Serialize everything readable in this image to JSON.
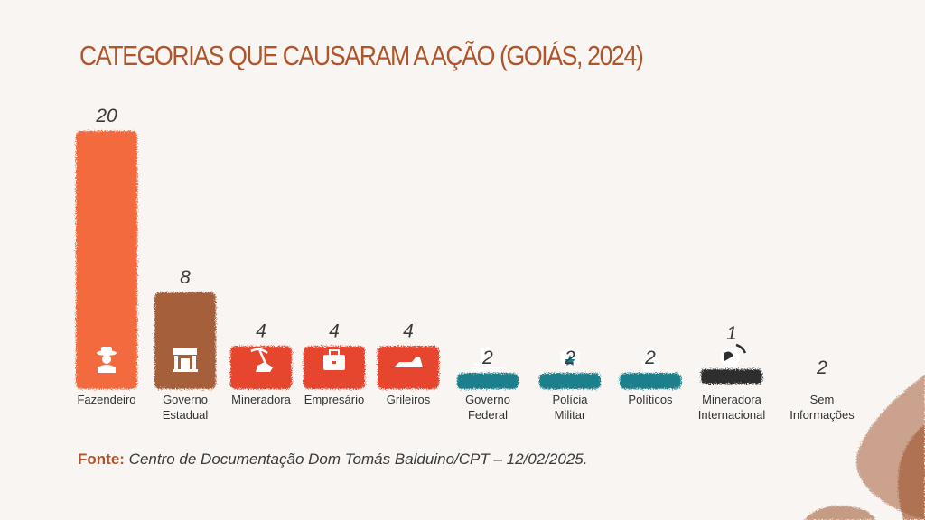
{
  "title": "CATEGORIAS QUE CAUSARAM A AÇÃO (GOIÁS, 2024)",
  "source": {
    "label": "Fonte:",
    "text": "Centro de Documentação Dom Tomás Balduino/CPT – 12/02/2025."
  },
  "colors": {
    "title": "#b0552a",
    "source_label": "#b0552a",
    "fazendeiro": "#f26a3c",
    "governo_estadual": "#a5603a",
    "red_group": "#e6452f",
    "teal_group": "#1c7f8c",
    "dark_group": "#2f2f2f",
    "deco": "#a5603a"
  },
  "chart_data": {
    "type": "bar",
    "title": "CATEGORIAS QUE CAUSARAM A AÇÃO (GOIÁS, 2024)",
    "xlabel": "",
    "ylabel": "",
    "ylim": [
      0,
      20
    ],
    "grid": false,
    "legend": "none",
    "categories": [
      {
        "label": [
          "Fazendeiro"
        ],
        "value": 20,
        "value_label": "20",
        "color": "#f26a3c",
        "icon": "farmer-icon"
      },
      {
        "label": [
          "Governo",
          "Estadual"
        ],
        "value": 8,
        "value_label": "8",
        "color": "#a5603a",
        "icon": "government-building-icon"
      },
      {
        "label": [
          "Mineradora"
        ],
        "value": 4,
        "value_label": "4",
        "color": "#e6452f",
        "icon": "mining-pickaxe-icon"
      },
      {
        "label": [
          "Empresário"
        ],
        "value": 4,
        "value_label": "4",
        "color": "#e6452f",
        "icon": "briefcase-icon"
      },
      {
        "label": [
          "Grileiros"
        ],
        "value": 4,
        "value_label": "4",
        "color": "#e6452f",
        "icon": "tractor-icon"
      },
      {
        "label": [
          "Governo",
          "Federal"
        ],
        "value": 2,
        "value_label": "2",
        "color": "#1c7f8c",
        "icon": "congress-building-icon"
      },
      {
        "label": [
          "Polícia",
          "Militar"
        ],
        "value": 2,
        "value_label": "2",
        "color": "#1c7f8c",
        "icon": "police-badge-icon"
      },
      {
        "label": [
          "Políticos"
        ],
        "value": 2,
        "value_label": "2",
        "color": "#1c7f8c",
        "icon": "politician-podium-icon"
      },
      {
        "label": [
          "Mineradora",
          "Internacional"
        ],
        "value": 1,
        "value_label": "1",
        "color": "#2f2f2f",
        "icon": "globe-pickaxe-icon"
      },
      {
        "label": [
          "Sem",
          "Informações"
        ],
        "value": 2,
        "value_label": "2",
        "color": "none",
        "icon": ""
      }
    ]
  }
}
